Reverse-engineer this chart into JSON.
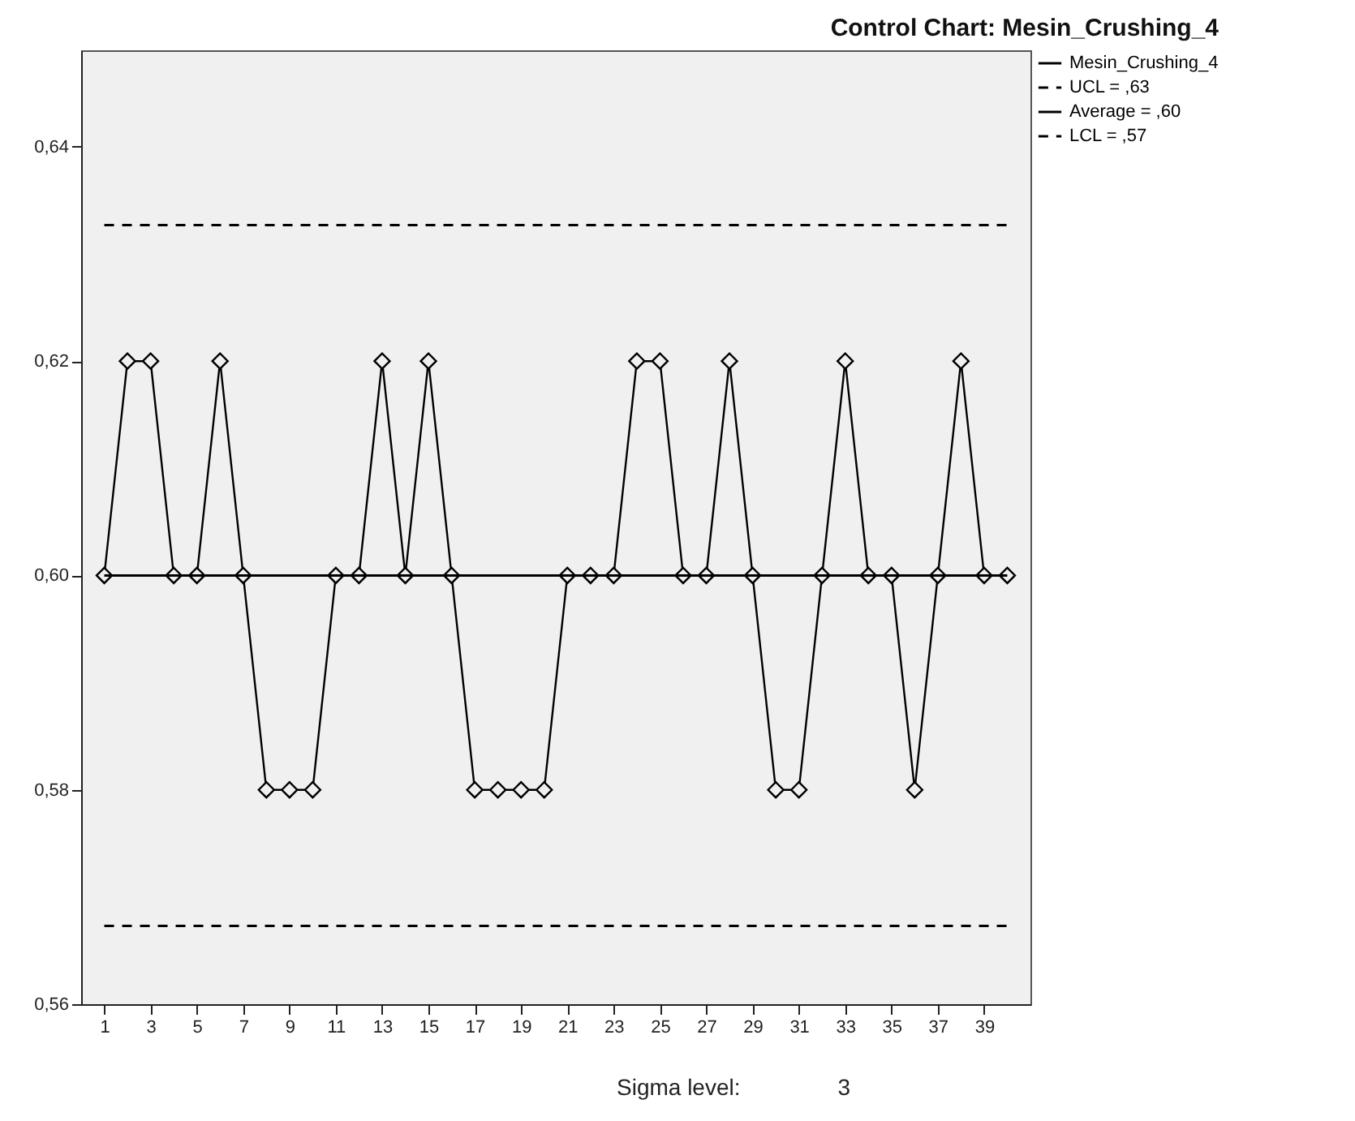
{
  "chart_data": {
    "type": "line",
    "title": "Control Chart: Mesin_Crushing_4",
    "x": [
      1,
      2,
      3,
      4,
      5,
      6,
      7,
      8,
      9,
      10,
      11,
      12,
      13,
      14,
      15,
      16,
      17,
      18,
      19,
      20,
      21,
      22,
      23,
      24,
      25,
      26,
      27,
      28,
      29,
      30,
      31,
      32,
      33,
      34,
      35,
      36,
      37,
      38,
      39,
      40
    ],
    "series": [
      {
        "name": "Mesin_Crushing_4",
        "color": "#000000",
        "marker": "diamond",
        "line_style": "solid",
        "values": [
          0.6,
          0.62,
          0.62,
          0.6,
          0.6,
          0.62,
          0.6,
          0.58,
          0.58,
          0.58,
          0.6,
          0.6,
          0.62,
          0.6,
          0.62,
          0.6,
          0.58,
          0.58,
          0.58,
          0.58,
          0.6,
          0.6,
          0.6,
          0.62,
          0.62,
          0.6,
          0.6,
          0.62,
          0.6,
          0.58,
          0.58,
          0.6,
          0.62,
          0.6,
          0.6,
          0.58,
          0.6,
          0.62,
          0.6,
          0.6
        ]
      }
    ],
    "ref_lines": [
      {
        "axis": "y",
        "value": 0.6327,
        "label": "UCL = ,63",
        "line_style": "dashed",
        "color": "#000000"
      },
      {
        "axis": "y",
        "value": 0.6,
        "label": "Average = ,60",
        "line_style": "solid",
        "color": "#000000"
      },
      {
        "axis": "y",
        "value": 0.5673,
        "label": "LCL = ,57",
        "line_style": "dashed",
        "color": "#000000"
      }
    ],
    "xlim": [
      0,
      41
    ],
    "xticks": [
      1,
      3,
      5,
      7,
      9,
      11,
      13,
      15,
      17,
      19,
      21,
      23,
      25,
      27,
      29,
      31,
      33,
      35,
      37,
      39
    ],
    "ylim": [
      0.56,
      0.649
    ],
    "yticks": [
      {
        "value": 0.56,
        "label": "0,56"
      },
      {
        "value": 0.58,
        "label": "0,58"
      },
      {
        "value": 0.6,
        "label": "0,60"
      },
      {
        "value": 0.62,
        "label": "0,62"
      },
      {
        "value": 0.64,
        "label": "0,64"
      }
    ],
    "annotations": [
      "Sigma level:",
      "3"
    ],
    "grid": false,
    "legend": "top right"
  }
}
